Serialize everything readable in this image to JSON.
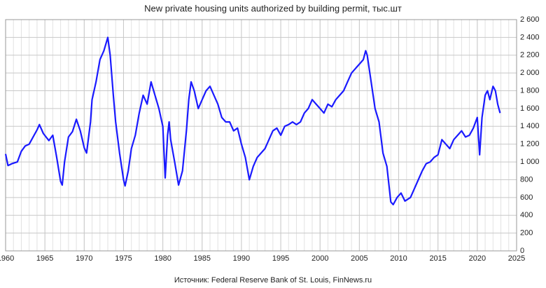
{
  "chart_data": {
    "type": "line",
    "title": "New private housing units authorized by building permit, тыс.шт",
    "source": "Источник: Federal Reserve Bank of St. Louis, FinNews.ru",
    "grid": true,
    "y_axis_side": "right",
    "xlim": [
      1960,
      2025
    ],
    "xticks": [
      1960,
      1965,
      1970,
      1975,
      1980,
      1985,
      1990,
      1995,
      2000,
      2005,
      2010,
      2015,
      2020,
      2025
    ],
    "ylim": [
      0,
      2600
    ],
    "yticks": [
      0,
      200,
      400,
      600,
      800,
      {
        "value": 1000,
        "label": "1 000"
      },
      {
        "value": 1200,
        "label": "1 200"
      },
      {
        "value": 1400,
        "label": "1 400"
      },
      {
        "value": 1600,
        "label": "1 600"
      },
      {
        "value": 1800,
        "label": "1 800"
      },
      {
        "value": 2000,
        "label": "2 000"
      },
      {
        "value": 2200,
        "label": "2 200"
      },
      {
        "value": 2400,
        "label": "2 400"
      },
      {
        "value": 2600,
        "label": "2 600"
      }
    ],
    "series": [
      {
        "color": "#1a1aff",
        "x": [
          1960.0,
          1960.3,
          1960.8,
          1961.5,
          1962,
          1962.5,
          1963,
          1963.5,
          1964,
          1964.3,
          1964.8,
          1965.5,
          1966,
          1966.5,
          1967,
          1967.2,
          1967.5,
          1968,
          1968.5,
          1969,
          1969.5,
          1970,
          1970.3,
          1970.8,
          1971,
          1971.5,
          1972,
          1972.5,
          1973,
          1973.3,
          1973.7,
          1974,
          1974.5,
          1975,
          1975.2,
          1975.6,
          1976,
          1976.5,
          1977,
          1977.5,
          1978,
          1978.5,
          1979,
          1979.5,
          1980,
          1980.3,
          1980.6,
          1980.8,
          1981,
          1981.5,
          1982,
          1982.5,
          1983,
          1983.3,
          1983.6,
          1984,
          1984.5,
          1985,
          1985.5,
          1986,
          1986.5,
          1987,
          1987.5,
          1988,
          1988.5,
          1989,
          1989.5,
          1990,
          1990.5,
          1991,
          1991.5,
          1992,
          1992.5,
          1993,
          1993.5,
          1994,
          1994.5,
          1995,
          1995.5,
          1996,
          1996.5,
          1997,
          1997.5,
          1998,
          1998.5,
          1999,
          1999.5,
          2000,
          2000.5,
          2001,
          2001.5,
          2002,
          2002.5,
          2003,
          2003.5,
          2004,
          2004.5,
          2005,
          2005.5,
          2005.8,
          2006,
          2006.5,
          2007,
          2007.5,
          2008,
          2008.5,
          2009,
          2009.3,
          2009.8,
          2010.3,
          2010.8,
          2011.5,
          2012,
          2012.5,
          2013,
          2013.5,
          2014,
          2014.5,
          2015,
          2015.5,
          2016,
          2016.5,
          2017,
          2017.5,
          2018,
          2018.5,
          2019,
          2019.5,
          2020,
          2020.3,
          2020.6,
          2021,
          2021.3,
          2021.6,
          2022,
          2022.3,
          2022.6,
          2022.9
        ],
        "values": [
          1090,
          960,
          980,
          1000,
          1120,
          1180,
          1200,
          1280,
          1360,
          1420,
          1320,
          1240,
          1300,
          1050,
          780,
          740,
          1000,
          1280,
          1340,
          1480,
          1350,
          1160,
          1100,
          1450,
          1700,
          1900,
          2150,
          2250,
          2400,
          2200,
          1750,
          1450,
          1100,
          800,
          730,
          900,
          1150,
          1300,
          1550,
          1750,
          1650,
          1900,
          1750,
          1600,
          1400,
          820,
          1300,
          1450,
          1250,
          1000,
          740,
          900,
          1350,
          1700,
          1900,
          1800,
          1600,
          1700,
          1800,
          1850,
          1750,
          1650,
          1500,
          1450,
          1450,
          1350,
          1380,
          1200,
          1050,
          800,
          950,
          1050,
          1100,
          1150,
          1250,
          1350,
          1380,
          1300,
          1400,
          1420,
          1450,
          1420,
          1450,
          1550,
          1600,
          1700,
          1650,
          1600,
          1550,
          1650,
          1620,
          1700,
          1750,
          1800,
          1900,
          2000,
          2050,
          2100,
          2150,
          2250,
          2200,
          1900,
          1600,
          1450,
          1100,
          950,
          550,
          520,
          600,
          650,
          560,
          600,
          700,
          800,
          900,
          980,
          1000,
          1050,
          1080,
          1250,
          1200,
          1150,
          1250,
          1300,
          1350,
          1280,
          1300,
          1380,
          1500,
          1080,
          1500,
          1750,
          1800,
          1700,
          1850,
          1800,
          1650,
          1550
        ]
      }
    ]
  }
}
